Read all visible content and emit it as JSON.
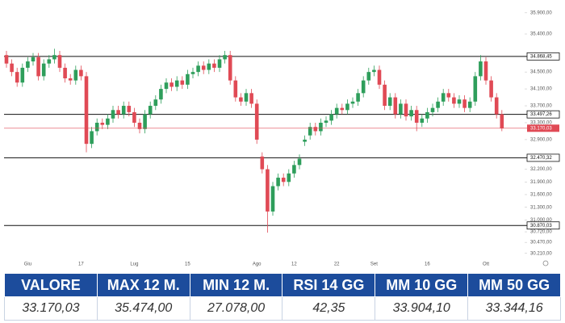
{
  "chart_data": {
    "type": "candlestick",
    "categories": [
      null,
      null,
      null,
      null,
      "Giu",
      null,
      null,
      null,
      null,
      null,
      null,
      null,
      null,
      null,
      "17",
      null,
      null,
      null,
      null,
      null,
      null,
      null,
      null,
      null,
      "Lug",
      null,
      null,
      null,
      null,
      null,
      null,
      null,
      null,
      null,
      "15",
      null,
      null,
      null,
      null,
      null,
      null,
      null,
      null,
      null,
      null,
      null,
      null,
      "Ago",
      null,
      null,
      null,
      null,
      null,
      null,
      "12",
      null,
      null,
      null,
      null,
      null,
      null,
      null,
      "22",
      null,
      null,
      null,
      null,
      null,
      null,
      "Set",
      null,
      null,
      null,
      null,
      null,
      null,
      null,
      null,
      null,
      "16",
      null,
      null,
      null,
      null,
      null,
      null,
      null,
      null,
      null,
      null,
      "Ott",
      null,
      null,
      null
    ],
    "open": [
      34900,
      34700,
      34500,
      34250,
      34600,
      34750,
      34850,
      34400,
      34700,
      34800,
      34900,
      34600,
      34350,
      34300,
      34550,
      34400,
      32800,
      33100,
      33300,
      33250,
      33400,
      33600,
      33500,
      33700,
      33550,
      33300,
      33150,
      33500,
      33700,
      33850,
      34100,
      34250,
      34150,
      34300,
      34200,
      34450,
      34500,
      34650,
      34550,
      34700,
      34600,
      34800,
      34900,
      34300,
      33900,
      33800,
      34000,
      33750,
      32500,
      32200,
      31200,
      31800,
      32000,
      31900,
      32100,
      32300,
      32850,
      33000,
      33200,
      33100,
      33300,
      33350,
      33500,
      33650,
      33600,
      33750,
      33800,
      34000,
      34300,
      34500,
      34550,
      34200,
      33700,
      33900,
      33500,
      33750,
      33450,
      33600,
      33300,
      33400,
      33550,
      33650,
      33800,
      34000,
      33900,
      33750,
      33850,
      33650,
      33800,
      34400,
      34750,
      34300,
      33900,
      33500
    ],
    "high": [
      35000,
      34800,
      34600,
      34700,
      34850,
      34950,
      34950,
      34800,
      34900,
      35050,
      35000,
      34700,
      34450,
      34650,
      34650,
      34500,
      33200,
      33400,
      33400,
      33500,
      33700,
      33700,
      33800,
      33800,
      33650,
      33400,
      33600,
      33800,
      33950,
      34200,
      34350,
      34350,
      34400,
      34400,
      34550,
      34600,
      34750,
      34750,
      34800,
      34800,
      34900,
      35000,
      35000,
      34400,
      34000,
      34100,
      34100,
      33850,
      32600,
      32300,
      31900,
      32100,
      32100,
      32200,
      32400,
      32550,
      33000,
      33300,
      33300,
      33400,
      33450,
      33600,
      33750,
      33750,
      33850,
      33900,
      34100,
      34400,
      34600,
      34650,
      34650,
      34300,
      34000,
      34000,
      33850,
      33850,
      33700,
      33700,
      33500,
      33650,
      33750,
      33900,
      34100,
      34100,
      34000,
      33950,
      33950,
      33900,
      34500,
      34900,
      34850,
      34400,
      34000,
      33600
    ],
    "low": [
      34600,
      34400,
      34150,
      34150,
      34500,
      34650,
      34300,
      34300,
      34600,
      34700,
      34500,
      34250,
      34200,
      34200,
      34300,
      32600,
      32700,
      33000,
      33150,
      33150,
      33300,
      33400,
      33400,
      33450,
      33200,
      33050,
      33050,
      33400,
      33600,
      33750,
      34000,
      34050,
      34050,
      34100,
      34100,
      34350,
      34400,
      34450,
      34450,
      34500,
      34500,
      34700,
      34200,
      33800,
      33700,
      33700,
      33650,
      32800,
      32100,
      30700,
      31100,
      31700,
      31800,
      31800,
      32000,
      32200,
      32750,
      32900,
      33000,
      33000,
      33200,
      33250,
      33400,
      33500,
      33500,
      33650,
      33700,
      33900,
      34200,
      34400,
      34100,
      33600,
      33600,
      33400,
      33400,
      33350,
      33350,
      33100,
      33200,
      33300,
      33450,
      33550,
      33700,
      33800,
      33650,
      33650,
      33550,
      33550,
      33700,
      34300,
      34200,
      33800,
      33400,
      33100
    ],
    "close": [
      34700,
      34500,
      34250,
      34600,
      34750,
      34850,
      34400,
      34700,
      34800,
      34900,
      34600,
      34350,
      34300,
      34550,
      34400,
      32800,
      33100,
      33300,
      33250,
      33400,
      33600,
      33500,
      33700,
      33550,
      33300,
      33150,
      33500,
      33700,
      33850,
      34100,
      34250,
      34150,
      34300,
      34200,
      34450,
      34500,
      34650,
      34550,
      34700,
      34600,
      34800,
      34900,
      34300,
      33900,
      33800,
      34000,
      33750,
      32900,
      32200,
      31200,
      31800,
      32000,
      31900,
      32100,
      32300,
      32450,
      32900,
      33200,
      33100,
      33300,
      33350,
      33500,
      33650,
      33600,
      33750,
      33800,
      34000,
      34300,
      34500,
      34550,
      34200,
      33700,
      33900,
      33500,
      33750,
      33450,
      33600,
      33300,
      33400,
      33550,
      33650,
      33800,
      34000,
      33900,
      33750,
      33850,
      33650,
      33800,
      34400,
      34750,
      34300,
      33900,
      33500,
      33170.03
    ],
    "up_color": "#2e9e5b",
    "down_color": "#e04a55",
    "ylim": [
      29900,
      36050
    ],
    "yticks": [
      {
        "value": 35900,
        "label": "35.900,00"
      },
      {
        "value": 35400,
        "label": "35.400,00"
      },
      {
        "value": 34500,
        "label": "34.500,00"
      },
      {
        "value": 34100,
        "label": "34.100,00"
      },
      {
        "value": 33700,
        "label": "33.700,00"
      },
      {
        "value": 33300,
        "label": "33.300,00"
      },
      {
        "value": 32900,
        "label": "32.900,00"
      },
      {
        "value": 32200,
        "label": "32.200,00"
      },
      {
        "value": 31900,
        "label": "31.900,00"
      },
      {
        "value": 31600,
        "label": "31.600,00"
      },
      {
        "value": 31300,
        "label": "31.300,00"
      },
      {
        "value": 31000,
        "label": "31.000,00"
      },
      {
        "value": 30720,
        "label": "30.720,00"
      },
      {
        "value": 30470,
        "label": "30.470,00"
      },
      {
        "value": 30210,
        "label": "30.210,00"
      }
    ],
    "levels": [
      {
        "value": 34868.45,
        "label": "34.868,45"
      },
      {
        "value": 33497.26,
        "label": "33.497,26"
      },
      {
        "value": 32470.32,
        "label": "32.470,32"
      },
      {
        "value": 30870.03,
        "label": "30.870,03"
      }
    ],
    "price_line": {
      "value": 33170.03,
      "label": "33.170,03",
      "color": "#e04a55"
    }
  },
  "table": {
    "header": [
      "VALORE",
      "MAX 12 M.",
      "MIN 12 M.",
      "RSI 14 GG",
      "MM 10 GG",
      "MM 50 GG"
    ],
    "row": [
      "33.170,03",
      "35.474,00",
      "27.078,00",
      "42,35",
      "33.904,10",
      "33.344,16"
    ]
  }
}
